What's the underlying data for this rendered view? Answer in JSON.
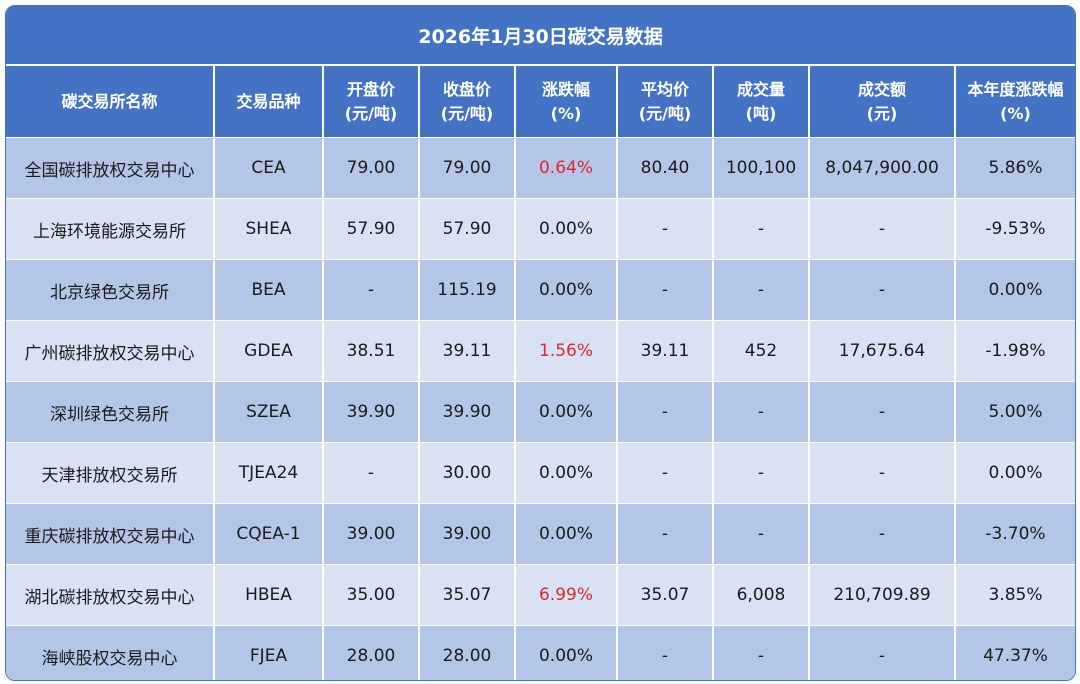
{
  "title": "2026年1月30日碳交易数据",
  "colors": {
    "header_bg": "#4472C4",
    "row_dark": "#B4C6E7",
    "row_light": "#D9E2F3",
    "positive_change": "#E0262B"
  },
  "columns": [
    {
      "line1": "碳交易所名称",
      "line2": ""
    },
    {
      "line1": "交易品种",
      "line2": ""
    },
    {
      "line1": "开盘价",
      "line2": "(元/吨)"
    },
    {
      "line1": "收盘价",
      "line2": "(元/吨)"
    },
    {
      "line1": "涨跌幅",
      "line2": "(%)"
    },
    {
      "line1": "平均价",
      "line2": "(元/吨)"
    },
    {
      "line1": "成交量",
      "line2": "(吨)"
    },
    {
      "line1": "成交额",
      "line2": "(元)"
    },
    {
      "line1": "本年度涨跌幅",
      "line2": "(%)"
    }
  ],
  "rows": [
    {
      "exchange": "全国碳排放权交易中心",
      "product": "CEA",
      "open": "79.00",
      "close": "79.00",
      "change": "0.64%",
      "avg": "80.40",
      "volume": "100,100",
      "turnover": "8,047,900.00",
      "ytd": "5.86%"
    },
    {
      "exchange": "上海环境能源交易所",
      "product": "SHEA",
      "open": "57.90",
      "close": "57.90",
      "change": "0.00%",
      "avg": "-",
      "volume": "-",
      "turnover": "-",
      "ytd": "-9.53%"
    },
    {
      "exchange": "北京绿色交易所",
      "product": "BEA",
      "open": "-",
      "close": "115.19",
      "change": "0.00%",
      "avg": "-",
      "volume": "-",
      "turnover": "-",
      "ytd": "0.00%"
    },
    {
      "exchange": "广州碳排放权交易中心",
      "product": "GDEA",
      "open": "38.51",
      "close": "39.11",
      "change": "1.56%",
      "avg": "39.11",
      "volume": "452",
      "turnover": "17,675.64",
      "ytd": "-1.98%"
    },
    {
      "exchange": "深圳绿色交易所",
      "product": "SZEA",
      "open": "39.90",
      "close": "39.90",
      "change": "0.00%",
      "avg": "-",
      "volume": "-",
      "turnover": "-",
      "ytd": "5.00%"
    },
    {
      "exchange": "天津排放权交易所",
      "product": "TJEA24",
      "open": "-",
      "close": "30.00",
      "change": "0.00%",
      "avg": "-",
      "volume": "-",
      "turnover": "-",
      "ytd": "0.00%"
    },
    {
      "exchange": "重庆碳排放权交易中心",
      "product": "CQEA-1",
      "open": "39.00",
      "close": "39.00",
      "change": "0.00%",
      "avg": "-",
      "volume": "-",
      "turnover": "-",
      "ytd": "-3.70%"
    },
    {
      "exchange": "湖北碳排放权交易中心",
      "product": "HBEA",
      "open": "35.00",
      "close": "35.07",
      "change": "6.99%",
      "avg": "35.07",
      "volume": "6,008",
      "turnover": "210,709.89",
      "ytd": "3.85%"
    },
    {
      "exchange": "海峡股权交易中心",
      "product": "FJEA",
      "open": "28.00",
      "close": "28.00",
      "change": "0.00%",
      "avg": "-",
      "volume": "-",
      "turnover": "-",
      "ytd": "47.37%"
    }
  ]
}
